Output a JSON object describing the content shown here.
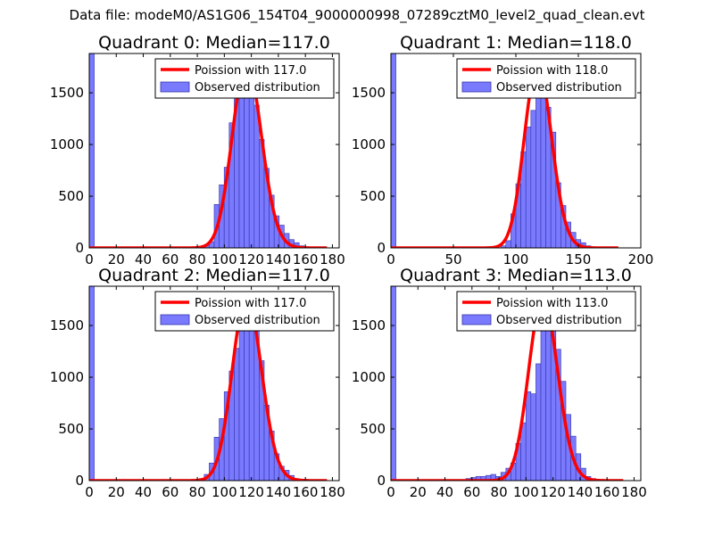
{
  "suptitle": "Data file: modeM0/AS1G06_154T04_9000000998_07289cztM0_level2_quad_clean.evt",
  "colors": {
    "hist_fill": "#7a7aff",
    "hist_edge": "#3333aa",
    "poisson_line": "#ff0000"
  },
  "chart_data": [
    {
      "type": "bar",
      "title": "Quadrant 0: Median=117.0",
      "xlim": [
        0,
        185
      ],
      "ylim": [
        0,
        1880
      ],
      "xticks": [
        0,
        20,
        40,
        60,
        80,
        100,
        120,
        140,
        160,
        180
      ],
      "yticks": [
        0,
        500,
        1000,
        1500
      ],
      "legend": [
        "Poission with 117.0",
        "Observed distribution"
      ],
      "legend_position": "upper-right",
      "bin_width": 3.7,
      "bins_x": [
        0,
        85.1,
        88.8,
        92.5,
        96.2,
        99.9,
        103.6,
        107.3,
        111.0,
        114.7,
        118.4,
        122.1,
        125.8,
        129.5,
        133.2,
        136.9,
        140.6,
        144.3,
        148.0,
        151.7,
        155.4,
        159.1
      ],
      "bins_y": [
        1880,
        20,
        60,
        420,
        610,
        780,
        1210,
        1440,
        1520,
        1680,
        1620,
        1380,
        1050,
        770,
        510,
        310,
        220,
        140,
        80,
        50,
        20,
        10
      ],
      "poisson_mean": 117.0,
      "poisson_amplitude": 1790,
      "poisson_xmax": 176
    },
    {
      "type": "bar",
      "title": "Quadrant 1: Median=118.0",
      "xlim": [
        0,
        200
      ],
      "ylim": [
        0,
        1880
      ],
      "xticks": [
        0,
        50,
        100,
        150,
        200
      ],
      "yticks": [
        0,
        500,
        1000,
        1500
      ],
      "legend": [
        "Poission with 118.0",
        "Observed distribution"
      ],
      "legend_position": "upper-right",
      "bin_width": 4.0,
      "bins_x": [
        0,
        88.0,
        92.0,
        96.0,
        100.0,
        104.0,
        108.0,
        112.0,
        116.0,
        120.0,
        124.0,
        128.0,
        132.0,
        136.0,
        140.0,
        144.0,
        148.0,
        152.0,
        156.0,
        160.0
      ],
      "bins_y": [
        1880,
        20,
        70,
        330,
        620,
        930,
        1170,
        1330,
        1560,
        1710,
        1360,
        1120,
        630,
        410,
        250,
        150,
        80,
        50,
        20,
        10
      ],
      "poisson_mean": 118.0,
      "poisson_amplitude": 1770,
      "poisson_xmax": 182
    },
    {
      "type": "bar",
      "title": "Quadrant 2: Median=117.0",
      "xlim": [
        0,
        185
      ],
      "ylim": [
        0,
        1880
      ],
      "xticks": [
        0,
        20,
        40,
        60,
        80,
        100,
        120,
        140,
        160,
        180
      ],
      "yticks": [
        0,
        500,
        1000,
        1500
      ],
      "legend": [
        "Poission with 117.0",
        "Observed distribution"
      ],
      "legend_position": "upper-right",
      "bin_width": 3.7,
      "bins_x": [
        0,
        74.0,
        77.7,
        81.4,
        85.1,
        88.8,
        92.5,
        96.2,
        99.9,
        103.6,
        107.3,
        111.0,
        114.7,
        118.4,
        122.1,
        125.8,
        129.5,
        133.2,
        136.9,
        140.6,
        144.3,
        148.0,
        151.7,
        155.4
      ],
      "bins_y": [
        1880,
        10,
        10,
        20,
        60,
        170,
        420,
        600,
        860,
        1060,
        1280,
        1470,
        1610,
        1680,
        1510,
        1160,
        730,
        480,
        260,
        140,
        100,
        50,
        20,
        10
      ],
      "poisson_mean": 117.0,
      "poisson_amplitude": 1770,
      "poisson_xmax": 176
    },
    {
      "type": "bar",
      "title": "Quadrant 3: Median=113.0",
      "xlim": [
        0,
        185
      ],
      "ylim": [
        0,
        1880
      ],
      "xticks": [
        0,
        20,
        40,
        60,
        80,
        100,
        120,
        140,
        160,
        180
      ],
      "yticks": [
        0,
        500,
        1000,
        1500
      ],
      "legend": [
        "Poission with 113.0",
        "Observed distribution"
      ],
      "legend_position": "upper-right",
      "bin_width": 3.7,
      "bins_x": [
        0,
        55.5,
        59.2,
        62.9,
        66.6,
        70.3,
        74.0,
        77.7,
        81.4,
        85.1,
        88.8,
        92.5,
        96.2,
        99.9,
        103.6,
        107.3,
        111.0,
        114.7,
        118.4,
        122.1,
        125.8,
        129.5,
        133.2,
        136.9,
        140.6,
        144.3,
        148.0,
        151.7
      ],
      "bins_y": [
        1880,
        20,
        30,
        40,
        40,
        50,
        60,
        40,
        80,
        120,
        170,
        360,
        560,
        860,
        840,
        1130,
        1560,
        1600,
        1480,
        1270,
        960,
        640,
        430,
        260,
        120,
        40,
        20,
        10
      ],
      "poisson_mean": 113.0,
      "poisson_amplitude": 1770,
      "poisson_xmax": 172
    }
  ]
}
